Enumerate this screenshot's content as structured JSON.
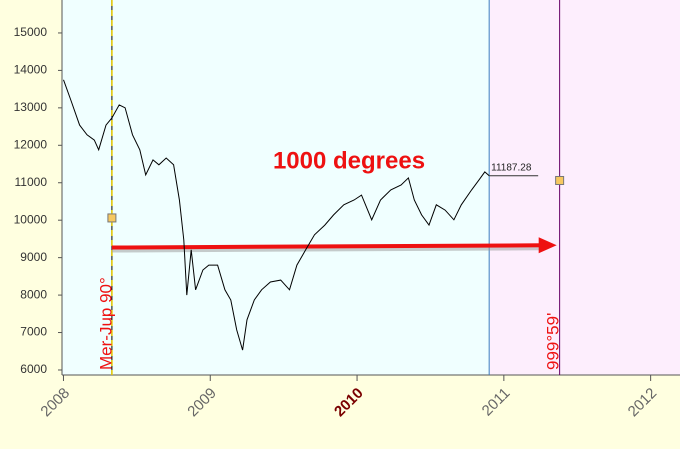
{
  "chart_data": {
    "type": "line",
    "annotations": [
      "1000 degrees",
      "Mer-Jup  90°",
      "999°59'"
    ],
    "series": [
      {
        "color": "#000000",
        "x": [
          2008.0,
          2008.05,
          2008.11,
          2008.16,
          2008.21,
          2008.24,
          2008.29,
          2008.33,
          2008.38,
          2008.42,
          2008.47,
          2008.52,
          2008.56,
          2008.61,
          2008.65,
          2008.7,
          2008.75,
          2008.79,
          2008.82,
          2008.84,
          2008.87,
          2008.9,
          2008.95,
          2008.99,
          2009.05,
          2009.1,
          2009.14,
          2009.18,
          2009.22,
          2009.25,
          2009.3,
          2009.35,
          2009.41,
          2009.48,
          2009.54,
          2009.59,
          2009.65,
          2009.71,
          2009.78,
          2009.84,
          2009.91,
          2009.98,
          2010.03,
          2010.1,
          2010.16,
          2010.23,
          2010.3,
          2010.35,
          2010.39,
          2010.44,
          2010.49,
          2010.54,
          2010.6,
          2010.66,
          2010.71,
          2010.78,
          2010.83,
          2010.87,
          2010.9
        ],
        "values": [
          13750,
          13210,
          12540,
          12280,
          12140,
          11880,
          12540,
          12730,
          13080,
          13000,
          12280,
          11880,
          11210,
          11610,
          11480,
          11660,
          11480,
          10540,
          9470,
          8000,
          9210,
          8140,
          8670,
          8800,
          8800,
          8140,
          7870,
          7070,
          6530,
          7340,
          7870,
          8140,
          8350,
          8400,
          8140,
          8800,
          9210,
          9610,
          9870,
          10140,
          10410,
          10540,
          10670,
          10010,
          10540,
          10810,
          10940,
          11130,
          10540,
          10140,
          9870,
          10410,
          10270,
          10010,
          10410,
          10810,
          11070,
          11290,
          11187.28
        ]
      }
    ],
    "xlim": [
      2007.99,
      2012.2
    ],
    "xticks": [
      2008,
      2009,
      2010,
      2011,
      2012
    ],
    "highlight_xtick": 2010,
    "ylim": [
      5866,
      15880
    ],
    "yticks": [
      6000,
      7000,
      8000,
      9000,
      10000,
      11000,
      12000,
      13000,
      14000,
      15000
    ],
    "vlines": [
      {
        "x": 2008.33,
        "color": "#e6c800",
        "style": "dashed"
      },
      {
        "x": 2010.9,
        "color": "#3a7fbf",
        "style": "solid"
      },
      {
        "x": 2011.38,
        "color": "#660066",
        "style": "solid"
      }
    ],
    "shade": {
      "from": 2010.9,
      "color": "#fdeefd"
    },
    "markers": [
      {
        "x": 2008.33,
        "y": 10060
      },
      {
        "x": 2011.38,
        "y": 11060
      }
    ],
    "arrow": {
      "x": [
        2008.33,
        2011.36
      ],
      "y": [
        9270,
        9330
      ],
      "color": "#ee1111"
    }
  }
}
